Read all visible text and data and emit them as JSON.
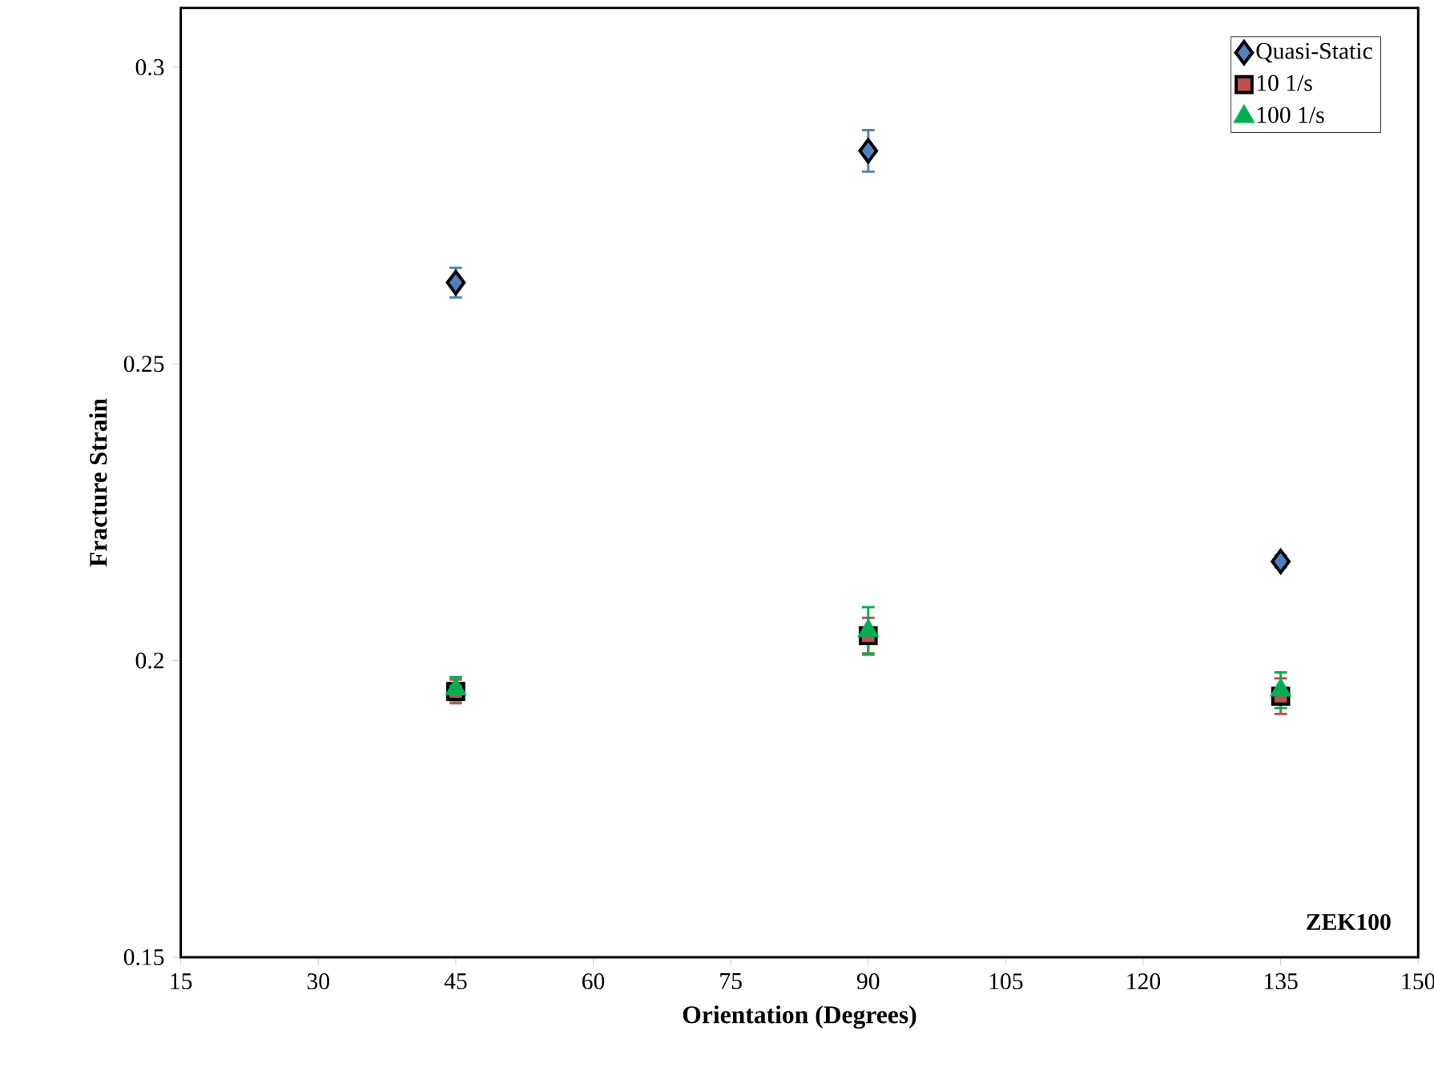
{
  "chart_data": {
    "type": "scatter",
    "xlabel": "Orientation (Degrees)",
    "ylabel": "Fracture Strain",
    "x": [
      45,
      90,
      135
    ],
    "series": [
      {
        "name": "Quasi-Static",
        "color": "#4f81bd",
        "marker": "diamond",
        "values": [
          0.2637,
          0.2859,
          0.2167
        ],
        "errors": [
          0.0025,
          0.0035,
          0.001
        ]
      },
      {
        "name": "10 1/s",
        "color": "#c0504d",
        "marker": "square",
        "values": [
          0.1948,
          0.2042,
          0.194
        ],
        "errors": [
          0.002,
          0.003,
          0.003
        ]
      },
      {
        "name": "100 1/s",
        "color": "#00b050",
        "marker": "triangle",
        "values": [
          0.1952,
          0.205,
          0.195
        ],
        "errors": [
          0.002,
          0.004,
          0.003
        ]
      }
    ],
    "xlim": [
      15,
      150
    ],
    "xticks": [
      15,
      30,
      45,
      60,
      75,
      90,
      105,
      120,
      135,
      150
    ],
    "ylim": [
      0.15,
      0.31
    ],
    "yticks": [
      0.15,
      0.2,
      0.25,
      0.3
    ],
    "legend": "top right",
    "grid": false,
    "annotations": [
      "ZEK100"
    ]
  }
}
